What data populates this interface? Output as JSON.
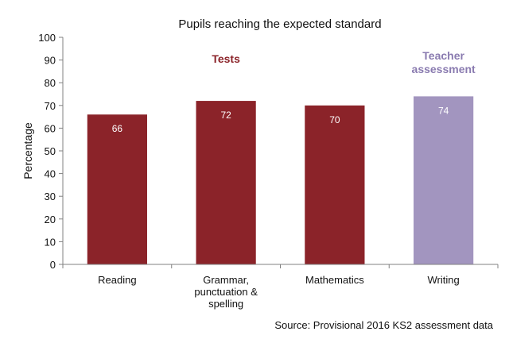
{
  "chart_data": {
    "type": "bar",
    "title": "Pupils reaching the expected standard",
    "xlabel": "",
    "ylabel": "Percentage",
    "ylim": [
      0,
      100
    ],
    "yticks": [
      0,
      10,
      20,
      30,
      40,
      50,
      60,
      70,
      80,
      90,
      100
    ],
    "grid": false,
    "categories": [
      [
        "Reading"
      ],
      [
        "Grammar,",
        "punctuation &",
        "spelling"
      ],
      [
        "Mathematics"
      ],
      [
        "Writing"
      ]
    ],
    "values": [
      66,
      72,
      70,
      74
    ],
    "bar_colors": [
      "#8b2329",
      "#8b2329",
      "#8b2329",
      "#a295bf"
    ],
    "annotations": [
      {
        "lines": [
          "Tests"
        ],
        "color": "#8b2329"
      },
      {
        "lines": [
          "Teacher",
          "assessment"
        ],
        "color": "#8a7bb0"
      }
    ],
    "source": "Source: Provisional 2016 KS2 assessment data"
  }
}
